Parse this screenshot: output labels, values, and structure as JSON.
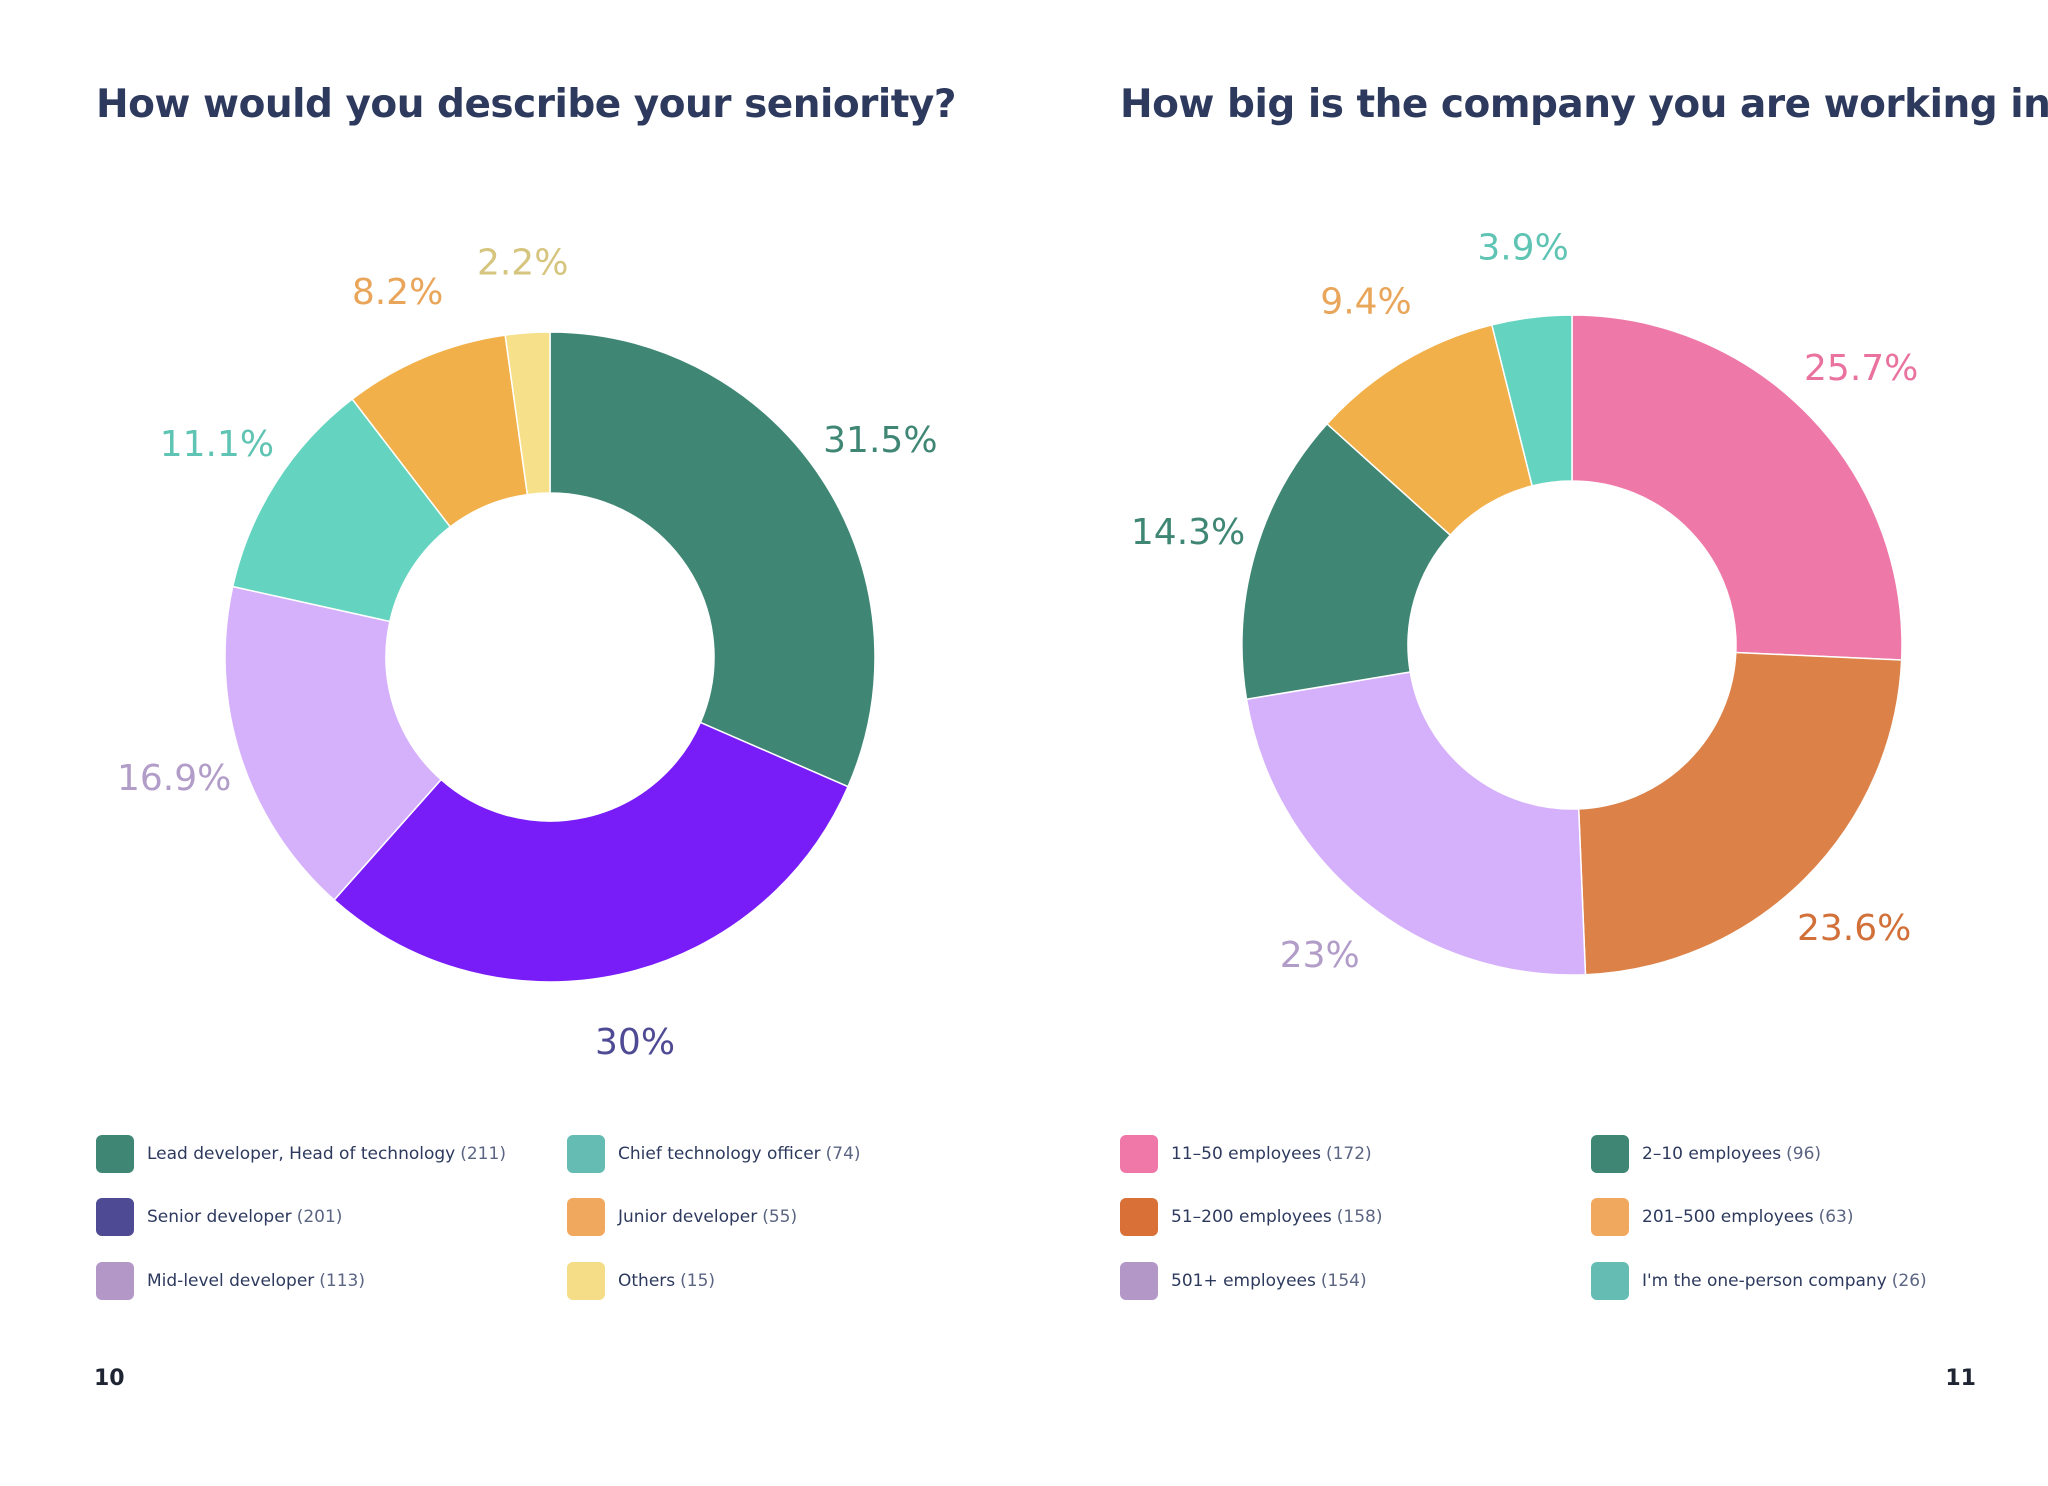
{
  "chart_data": [
    {
      "type": "pie",
      "title": "How would you describe your seniority?",
      "page_number": "10",
      "slices": [
        {
          "label": "Lead developer, Head of technology",
          "count": "(211)",
          "value": 31.5,
          "display": "31.5%",
          "color": "#3f8774",
          "label_color": "#3f8774",
          "legend_color": "#3f8774"
        },
        {
          "label": "Senior developer",
          "count": "(201)",
          "value": 30.0,
          "display": "30%",
          "color": "#781cf8",
          "label_color": "#4e4a94",
          "legend_color": "#4e4a94"
        },
        {
          "label": "Mid-level developer",
          "count": "(113)",
          "value": 16.9,
          "display": "16.9%",
          "color": "#d5b0fb",
          "label_color": "#b29cc8",
          "legend_color": "#b397c6"
        },
        {
          "label": "Chief technology officer",
          "count": "(74)",
          "value": 11.1,
          "display": "11.1%",
          "color": "#64d4c0",
          "label_color": "#5fc4b3",
          "legend_color": "#64bcb2"
        },
        {
          "label": "Junior developer",
          "count": "(55)",
          "value": 8.2,
          "display": "8.2%",
          "color": "#f2b04b",
          "label_color": "#e9a65b",
          "legend_color": "#f0a85e"
        },
        {
          "label": "Others",
          "count": "(15)",
          "value": 2.2,
          "display": "2.2%",
          "color": "#f7e08a",
          "label_color": "#d6c57e",
          "legend_color": "#f4dd86"
        }
      ],
      "legend_order": [
        0,
        3,
        1,
        4,
        2,
        5
      ]
    },
    {
      "type": "pie",
      "title": "How big is the company you are working in?",
      "page_number": "11",
      "slices": [
        {
          "label": "11–50 employees",
          "count": "(172)",
          "value": 25.7,
          "display": "25.7%",
          "color": "#ee79a8",
          "label_color": "#e9729f",
          "legend_color": "#ef78a8"
        },
        {
          "label": "51–200 employees",
          "count": "(158)",
          "value": 23.6,
          "display": "23.6%",
          "color": "#dc8248",
          "label_color": "#d2703a",
          "legend_color": "#d87038"
        },
        {
          "label": "501+ employees",
          "count": "(154)",
          "value": 23.0,
          "display": "23%",
          "color": "#d5b0fb",
          "label_color": "#b29cc8",
          "legend_color": "#b397c6"
        },
        {
          "label": "2–10 employees",
          "count": "(96)",
          "value": 14.3,
          "display": "14.3%",
          "color": "#3f8774",
          "label_color": "#3f8774",
          "legend_color": "#3f8774"
        },
        {
          "label": "201–500 employees",
          "count": "(63)",
          "value": 9.4,
          "display": "9.4%",
          "color": "#f2b04b",
          "label_color": "#e9a65b",
          "legend_color": "#f0a85e"
        },
        {
          "label": "I'm the one-person company",
          "count": "(26)",
          "value": 3.9,
          "display": "3.9%",
          "color": "#64d4c0",
          "label_color": "#5fc4b3",
          "legend_color": "#64bcb2"
        }
      ],
      "legend_order": [
        0,
        3,
        1,
        4,
        2,
        5
      ]
    }
  ]
}
